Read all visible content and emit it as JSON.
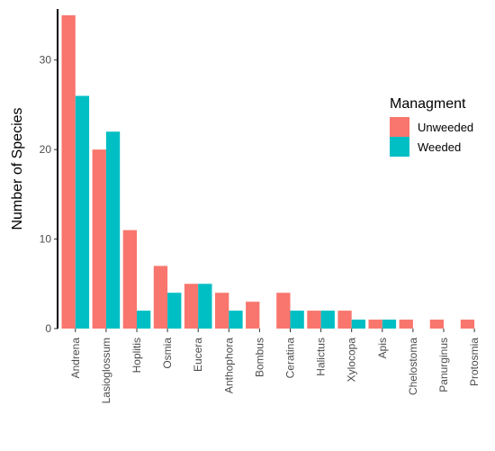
{
  "chart_data": {
    "type": "bar",
    "title": "",
    "xlabel": "",
    "ylabel": "Number of Species",
    "ylim": [
      0,
      35
    ],
    "yticks": [
      0,
      10,
      20,
      30
    ],
    "grid": false,
    "legend": {
      "title": "Managment",
      "placement": "right"
    },
    "categories": [
      "Andrena",
      "Lasioglossum",
      "Hoplitis",
      "Osmia",
      "Eucera",
      "Anthophora",
      "Bombus",
      "Ceratina",
      "Halictus",
      "Xylocopa",
      "Apis",
      "Chelostoma",
      "Panurginus",
      "Protosmia"
    ],
    "series": [
      {
        "name": "Unweeded",
        "color": "#F8766D",
        "values": [
          35,
          20,
          11,
          7,
          5,
          4,
          3,
          4,
          2,
          2,
          1,
          1,
          1,
          1
        ]
      },
      {
        "name": "Weeded",
        "color": "#00BFC4",
        "values": [
          26,
          22,
          2,
          4,
          5,
          2,
          0,
          2,
          2,
          1,
          1,
          0,
          0,
          0
        ]
      }
    ]
  }
}
